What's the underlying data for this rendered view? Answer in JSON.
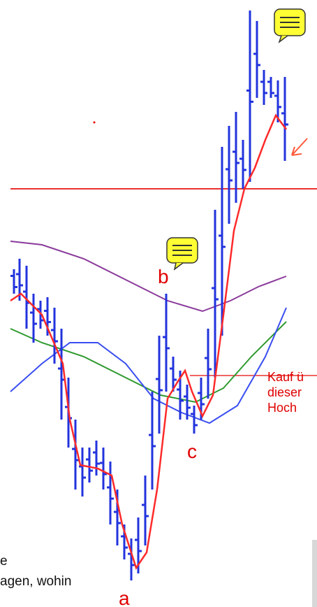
{
  "labels": {
    "a": "a",
    "b": "b",
    "c": "c"
  },
  "note": [
    "Kauf ü",
    "dieser",
    "Hoch"
  ],
  "caption": [
    "e",
    "agen, wohin"
  ]
}
